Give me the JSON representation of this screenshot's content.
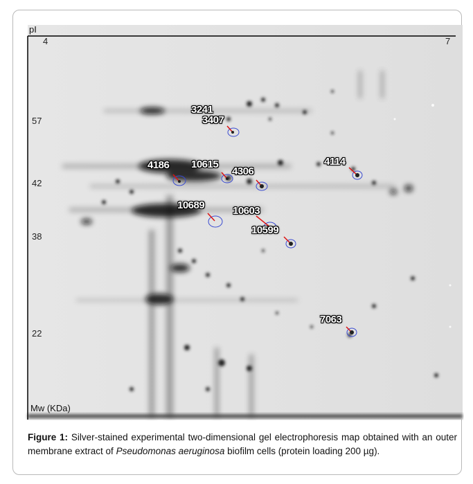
{
  "figure": {
    "axes": {
      "x_title": "pI",
      "x_min": "4",
      "x_max": "7",
      "y_title": "Mw (KDa)",
      "y_ticks": [
        "57",
        "42",
        "38",
        "22"
      ]
    },
    "spots": [
      "3241",
      "3407",
      "4186",
      "10615",
      "4306",
      "4114",
      "10689",
      "10603",
      "10599",
      "7063"
    ],
    "caption": {
      "label": "Figure 1:",
      "text_a": " Silver-stained experimental two-dimensional gel electrophoresis map obtained with an outer membrane extract of ",
      "species": "Pseudomonas aeruginosa",
      "text_b": " biofilm cells (protein loading 200 µg)."
    }
  }
}
